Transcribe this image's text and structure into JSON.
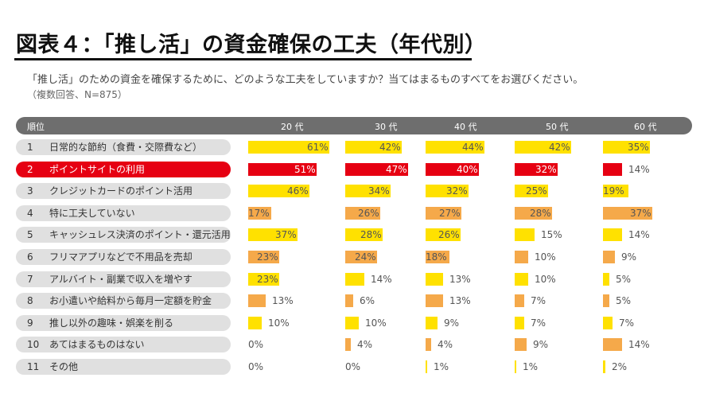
{
  "title": "図表４：「推し活」の資金確保の工夫（年代別）",
  "subtitle": "「推し活」のための資金を確保するために、どのような工夫をしていますか？当てはまるものすべてをお選びください。",
  "note": "（複数回答、N=875）",
  "header": {
    "rank": "順位",
    "columns": [
      "20 代",
      "30 代",
      "40 代",
      "50 代",
      "60 代"
    ]
  },
  "colors": {
    "yellow": "#ffe100",
    "orange": "#f5a94a",
    "red": "#e60012",
    "header": "#6e6e6e",
    "pill": "#e0e0e0"
  },
  "chart_data": {
    "type": "table",
    "title": "図表４：「推し活」の資金確保の工夫（年代別）",
    "categories": [
      "20 代",
      "30 代",
      "40 代",
      "50 代",
      "60 代"
    ],
    "rows": [
      {
        "rank": "1",
        "label": "日常的な節約（食費・交際費など）",
        "highlight": false,
        "values": [
          61,
          42,
          44,
          42,
          35
        ],
        "colors": [
          "yellow",
          "yellow",
          "yellow",
          "yellow",
          "yellow"
        ]
      },
      {
        "rank": "2",
        "label": "ポイントサイトの利用",
        "highlight": true,
        "values": [
          51,
          47,
          40,
          32,
          14
        ],
        "colors": [
          "red",
          "red",
          "red",
          "red",
          "red"
        ]
      },
      {
        "rank": "3",
        "label": "クレジットカードのポイント活用",
        "highlight": false,
        "values": [
          46,
          34,
          32,
          25,
          19
        ],
        "colors": [
          "yellow",
          "yellow",
          "yellow",
          "yellow",
          "yellow"
        ]
      },
      {
        "rank": "4",
        "label": "特に工夫していない",
        "highlight": false,
        "values": [
          17,
          26,
          27,
          28,
          37
        ],
        "colors": [
          "orange",
          "orange",
          "orange",
          "orange",
          "orange"
        ]
      },
      {
        "rank": "5",
        "label": "キャッシュレス決済のポイント・還元活用",
        "highlight": false,
        "values": [
          37,
          28,
          26,
          15,
          14
        ],
        "colors": [
          "yellow",
          "yellow",
          "yellow",
          "yellow",
          "yellow"
        ]
      },
      {
        "rank": "6",
        "label": "フリマアプリなどで不用品を売却",
        "highlight": false,
        "values": [
          23,
          24,
          18,
          10,
          9
        ],
        "colors": [
          "orange",
          "orange",
          "orange",
          "orange",
          "orange"
        ]
      },
      {
        "rank": "7",
        "label": "アルバイト・副業で収入を増やす",
        "highlight": false,
        "values": [
          23,
          14,
          13,
          10,
          5
        ],
        "colors": [
          "yellow",
          "yellow",
          "yellow",
          "yellow",
          "yellow"
        ]
      },
      {
        "rank": "8",
        "label": "お小遣いや給料から毎月一定額を貯金",
        "highlight": false,
        "values": [
          13,
          6,
          13,
          7,
          5
        ],
        "colors": [
          "orange",
          "orange",
          "orange",
          "orange",
          "orange"
        ]
      },
      {
        "rank": "9",
        "label": "推し以外の趣味・娯楽を削る",
        "highlight": false,
        "values": [
          10,
          10,
          9,
          7,
          7
        ],
        "colors": [
          "yellow",
          "yellow",
          "yellow",
          "yellow",
          "yellow"
        ]
      },
      {
        "rank": "10",
        "label": "あてはまるものはない",
        "highlight": false,
        "values": [
          0,
          4,
          4,
          9,
          14
        ],
        "colors": [
          "orange",
          "orange",
          "orange",
          "orange",
          "orange"
        ]
      },
      {
        "rank": "11",
        "label": "その他",
        "highlight": false,
        "values": [
          0,
          0,
          1,
          1,
          2
        ],
        "colors": [
          "yellow",
          "yellow",
          "yellow",
          "yellow",
          "yellow"
        ]
      }
    ],
    "unit": "%"
  }
}
